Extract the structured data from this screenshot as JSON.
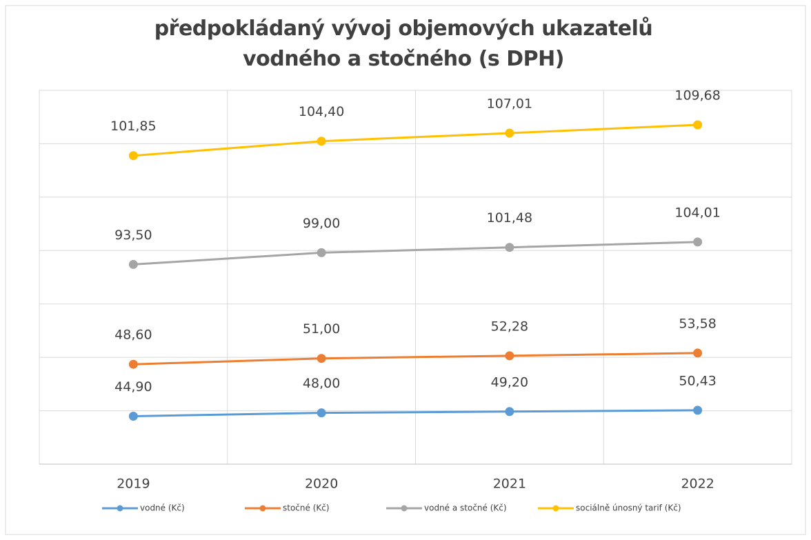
{
  "chart_data": {
    "type": "line",
    "stacked": true,
    "title": "předpokládaný vývoj objemových ukazatelů vodného a stočného (s DPH)",
    "categories": [
      "2019",
      "2020",
      "2021",
      "2022"
    ],
    "ylim": [
      0,
      350
    ],
    "yticks": [
      0,
      50,
      100,
      150,
      200,
      250,
      300,
      350
    ],
    "grid": true,
    "legend": "bottom",
    "series": [
      {
        "name": "vodné (Kč)",
        "color": "#5b9bd5",
        "values": [
          44.9,
          48.0,
          49.2,
          50.43
        ],
        "value_labels": [
          "44,90",
          "48,00",
          "49,20",
          "50,43"
        ]
      },
      {
        "name": "stočné (Kč)",
        "color": "#ed7d31",
        "values": [
          48.6,
          51.0,
          52.28,
          53.58
        ],
        "value_labels": [
          "48,60",
          "51,00",
          "52,28",
          "53,58"
        ]
      },
      {
        "name": "vodné a stočné (Kč)",
        "color": "#a5a5a5",
        "values": [
          93.5,
          99.0,
          101.48,
          104.01
        ],
        "value_labels": [
          "93,50",
          "99,00",
          "101,48",
          "104,01"
        ]
      },
      {
        "name": "sociálně únosný tarif (Kč)",
        "color": "#ffc000",
        "values": [
          101.85,
          104.4,
          107.01,
          109.68
        ],
        "value_labels": [
          "101,85",
          "104,40",
          "107,01",
          "109,68"
        ]
      }
    ]
  }
}
